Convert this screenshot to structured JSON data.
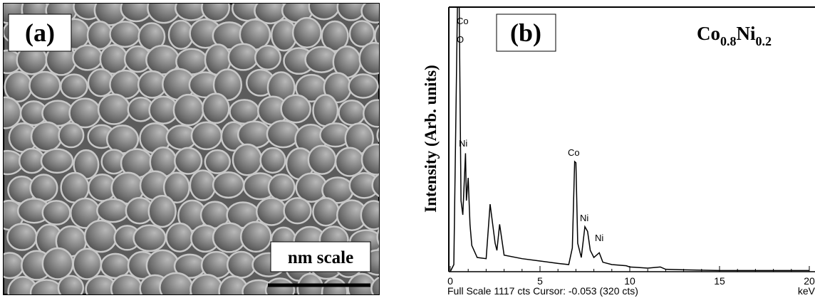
{
  "panel_a": {
    "label": "(a)",
    "scale_bar": "nm scale"
  },
  "chart_data": {
    "type": "line",
    "label": "(b)",
    "title": [
      "Co",
      "0.8",
      "Ni",
      "0.2"
    ],
    "ylabel": "Intensity (Arb. units)",
    "x_unit": "keV",
    "footer": "Full Scale 1117 cts Cursor: -0.053  (320 cts)",
    "annotations": [
      "Co",
      "O",
      "Ni",
      "Co",
      "Ni",
      "Ni"
    ],
    "color": "#000000",
    "x": [
      0,
      0.2,
      0.4,
      0.5,
      0.6,
      0.7,
      0.85,
      0.9,
      1.0,
      1.1,
      1.2,
      1.5,
      2.0,
      2.22,
      2.5,
      2.6,
      2.75,
      3.0,
      4.0,
      5.0,
      6.0,
      6.6,
      6.8,
      6.93,
      7.0,
      7.1,
      7.3,
      7.5,
      7.65,
      7.8,
      8.0,
      8.3,
      8.5,
      9.0,
      9.8,
      10.0,
      11.0,
      11.7,
      12.0,
      13.0,
      15.0,
      20.0
    ],
    "values": [
      0,
      30,
      1117,
      1117,
      300,
      240,
      500,
      300,
      396,
      200,
      111,
      60,
      55,
      285,
      120,
      90,
      200,
      70,
      55,
      45,
      35,
      30,
      100,
      465,
      460,
      120,
      60,
      190,
      170,
      90,
      60,
      80,
      40,
      30,
      25,
      20,
      15,
      20,
      10,
      8,
      5,
      5
    ],
    "xlim": [
      0,
      20
    ],
    "ylim": [
      0,
      1117
    ],
    "xticks": [
      0,
      5,
      10,
      15,
      20
    ]
  }
}
